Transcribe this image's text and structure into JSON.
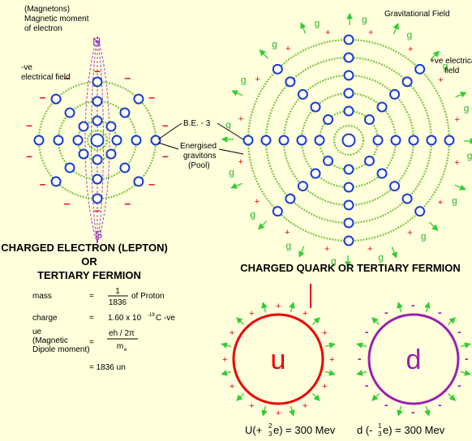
{
  "electron": {
    "magnetons_note": [
      "(Magnetons)",
      "Magnetic moment",
      "of electron"
    ],
    "north": "N",
    "south": "S",
    "field_label": [
      "-ve",
      "electrical field"
    ],
    "charge_symbol": "–",
    "title": [
      "CHARGED ELECTRON (LEPTON)",
      "OR",
      "TERTIARY FERMION"
    ]
  },
  "center_labels": {
    "binding_energy": "B.E. - 3",
    "gravitons": [
      "Energised",
      "gravitons",
      "(Pool)"
    ]
  },
  "quark": {
    "gravitational_field": "Gravitational Field",
    "field_label": [
      "+ve electrical",
      "field"
    ],
    "graviton_symbol": "g",
    "charge_symbol": "+",
    "title": "CHARGED QUARK OR TERTIARY FERMION"
  },
  "properties": {
    "mass": {
      "label": "mass",
      "eq": "=",
      "numerator": "1",
      "denominator": "1836",
      "suffix": "of Proton"
    },
    "charge": {
      "label": "charge",
      "eq": "=",
      "base": "1.60 x 10",
      "exponent": "-19",
      "suffix": "C -ve"
    },
    "moment": {
      "label": [
        "ue",
        "(Magnetic",
        "Dipole moment)"
      ],
      "eq": "=",
      "numerator": "eh / 2π",
      "denominator": "m",
      "subscript": "e"
    },
    "result": "=    1836 un"
  },
  "quarks": {
    "up": {
      "symbol": "u",
      "prefix": "U(+",
      "numerator": "2",
      "denominator": "3",
      "suffix": "e) = 300 Mev"
    },
    "down": {
      "symbol": "d",
      "prefix": "d (-",
      "numerator": "1",
      "denominator": "3",
      "suffix": "e) = 300 Mev",
      "charge_symbol": "-"
    }
  }
}
